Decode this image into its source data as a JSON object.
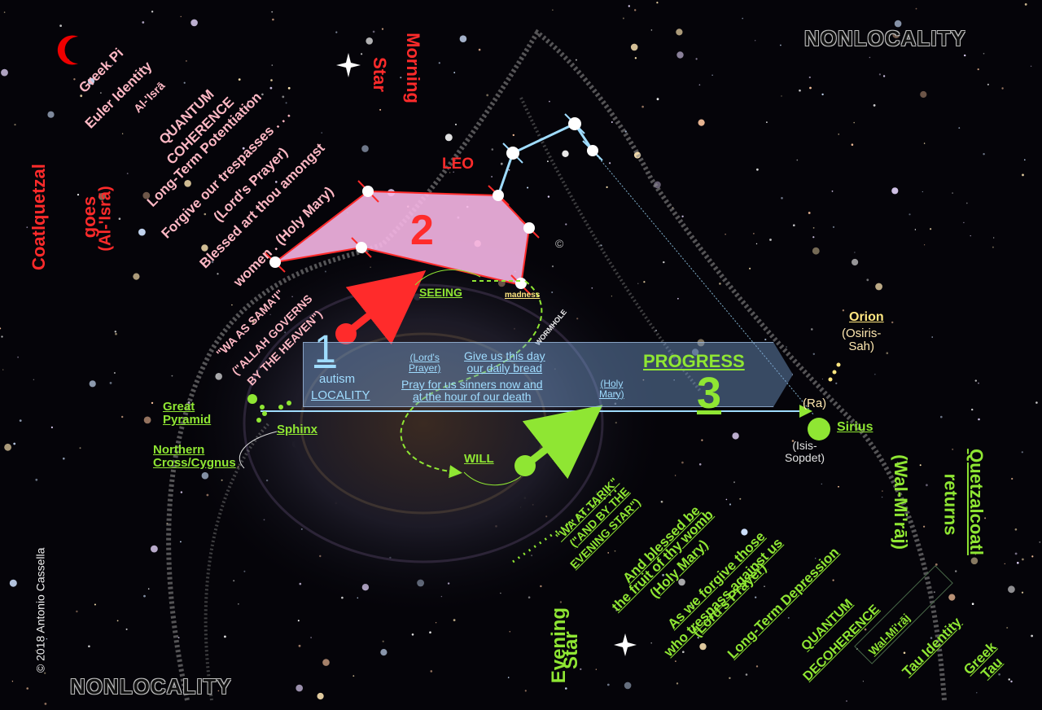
{
  "nonlocality_top": "NONLOCALITY",
  "nonlocality_bottom": "NONLOCALITY",
  "copyright": "© 2018 Antonio Cassella",
  "left_diag": [
    "Greek Pi",
    "Euler Identity",
    "Al-'Isrā",
    "QUANTUM",
    "COHERENCE",
    "Long-Term Potentiation",
    "Forgive our trespasses . . .",
    "(Lord's Prayer)",
    "Blessed art thou amongst",
    "women . (Holy Mary)"
  ],
  "coatl_left": [
    "Coatlquetzal",
    "goes",
    "(Al-'Isrā)"
  ],
  "morning_star": [
    "Morning",
    "Star"
  ],
  "leo": "LEO",
  "num2": "2",
  "copyright_symbol": "©",
  "quran_left": [
    "\"WA AS SAMA'I\"",
    "(\"ALLAH GOVERNS",
    "BY THE HEAVEN\")"
  ],
  "seeing": "SEEING",
  "madness": "madness",
  "wormhole": "WORMHOLE",
  "num1": "1",
  "autism": "autism",
  "locality": "LOCALITY",
  "lords_prayer_paren": [
    "(Lord's",
    "Prayer)"
  ],
  "give_us": [
    "Give us this day",
    "our daily bread"
  ],
  "pray_for_us": [
    "Pray for us sinners now and",
    "at the hour of our death"
  ],
  "holy_mary_paren": [
    "(Holy",
    "Mary)"
  ],
  "progress": "PROGRESS",
  "num3": "3",
  "great_pyramid": [
    "Great",
    "Pyramid"
  ],
  "sphinx": "Sphinx",
  "northern_cross": [
    "Northern",
    "Cross/Cygnus"
  ],
  "will": "WILL",
  "orion": "Orion",
  "osiris": [
    "(Osiris-",
    "Sah)"
  ],
  "ra": "(Ra)",
  "sirius": "Sirius",
  "isis": [
    "(Isis-",
    "Sopdet)"
  ],
  "quran_right": [
    "\"WA AT TARIK\"",
    "(\"AND BY THE",
    "EVENING STAR\")"
  ],
  "right_diag": [
    "And blessed be",
    "the fruit of thy womb",
    "(Holy Mary)",
    "As we forgive those",
    "who trespass against us",
    "(Lord's Prayer)",
    "Long-Term Depression",
    "QUANTUM",
    "DECOHERENCE",
    "Wal-Mi'rāj",
    "Tau Identity",
    "Greek",
    "Tau"
  ],
  "quetzal_right": [
    "Quetzalcoatl",
    "returns",
    "(Wal-Mi'rāj)"
  ],
  "evening_star": [
    "Evening",
    "Star"
  ],
  "colors": {
    "red": "#ff2b2b",
    "green": "#8fe633",
    "pink": "#ffb8c4",
    "cyan": "#9fdcff",
    "pink_fill": "#f6b6e6"
  }
}
